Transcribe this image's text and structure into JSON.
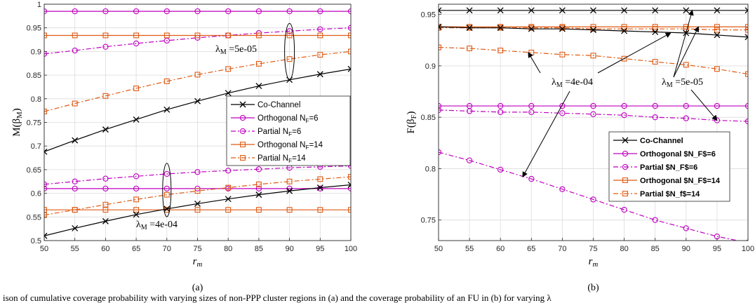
{
  "caption": "ison of cumulative coverage probability with varying sizes of non-PPP cluster regions in (a) and the coverage probability of an FU in (b) for varying λ",
  "chart_data": [
    {
      "type": "line",
      "panel_label": "(a)",
      "xlabel": "r_m",
      "ylabel": "M(β_M)",
      "xlim": [
        50,
        100
      ],
      "ylim": [
        0.5,
        1.0
      ],
      "xticks": [
        50,
        55,
        60,
        65,
        70,
        75,
        80,
        85,
        90,
        95,
        100
      ],
      "yticks": [
        0.5,
        0.55,
        0.6,
        0.65,
        0.7,
        0.75,
        0.8,
        0.85,
        0.9,
        0.95,
        1.0
      ],
      "ytick_labels": [
        "0.5",
        "0.55",
        "0.6",
        "0.65",
        "0.7",
        "0.75",
        "0.8",
        "0.85",
        "0.9",
        "0.95",
        "1"
      ],
      "grid": true,
      "legend_position": "center-right",
      "legend": [
        {
          "label": "Co-Channel",
          "color": "#000000",
          "dash": "",
          "marker": "x"
        },
        {
          "label": "Orthogonal N_F=6",
          "color": "#BF00BF",
          "dash": "",
          "marker": "o"
        },
        {
          "label": "Partial N_F=6",
          "color": "#BF00BF",
          "dash": "7 3 2 3",
          "marker": "o"
        },
        {
          "label": "Orthogonal N_F=14",
          "color": "#E05A12",
          "dash": "",
          "marker": "s"
        },
        {
          "label": "Partial N_F=14",
          "color": "#E05A12",
          "dash": "7 3 2 3",
          "marker": "s"
        }
      ],
      "x": [
        50,
        55,
        60,
        65,
        70,
        75,
        80,
        85,
        90,
        95,
        100
      ],
      "series": [
        {
          "name": "Orthogonal N_F=6",
          "group": "λ_M=5e-05",
          "color": "#BF00BF",
          "dash": "",
          "marker": "o",
          "values": [
            0.985,
            0.985,
            0.985,
            0.985,
            0.985,
            0.985,
            0.985,
            0.985,
            0.985,
            0.985,
            0.985
          ]
        },
        {
          "name": "Partial N_F=6",
          "group": "λ_M=5e-05",
          "color": "#BF00BF",
          "dash": "7 3 2 3",
          "marker": "o",
          "values": [
            0.895,
            0.902,
            0.91,
            0.917,
            0.923,
            0.929,
            0.934,
            0.939,
            0.943,
            0.947,
            0.95
          ]
        },
        {
          "name": "Orthogonal N_F=14",
          "group": "λ_M=5e-05",
          "color": "#E05A12",
          "dash": "",
          "marker": "s",
          "values": [
            0.934,
            0.934,
            0.934,
            0.934,
            0.934,
            0.934,
            0.934,
            0.934,
            0.934,
            0.934,
            0.934
          ]
        },
        {
          "name": "Partial N_F=14",
          "group": "λ_M=5e-05",
          "color": "#E05A12",
          "dash": "7 3 2 3",
          "marker": "s",
          "values": [
            0.773,
            0.79,
            0.806,
            0.822,
            0.837,
            0.851,
            0.863,
            0.874,
            0.884,
            0.893,
            0.9
          ]
        },
        {
          "name": "Co-Channel",
          "group": "λ_M=5e-05",
          "color": "#000000",
          "dash": "",
          "marker": "x",
          "values": [
            0.688,
            0.712,
            0.735,
            0.756,
            0.777,
            0.795,
            0.812,
            0.827,
            0.84,
            0.852,
            0.863
          ]
        },
        {
          "name": "Partial N_F=6",
          "group": "λ_M=4e-04",
          "color": "#BF00BF",
          "dash": "7 3 2 3",
          "marker": "o",
          "values": [
            0.619,
            0.625,
            0.631,
            0.636,
            0.641,
            0.645,
            0.648,
            0.651,
            0.654,
            0.656,
            0.658
          ]
        },
        {
          "name": "Orthogonal N_F=6",
          "group": "λ_M=4e-04",
          "color": "#BF00BF",
          "dash": "",
          "marker": "o",
          "values": [
            0.61,
            0.61,
            0.61,
            0.61,
            0.61,
            0.61,
            0.61,
            0.61,
            0.61,
            0.61,
            0.61
          ]
        },
        {
          "name": "Partial N_F=14",
          "group": "λ_M=4e-04",
          "color": "#E05A12",
          "dash": "7 3 2 3",
          "marker": "s",
          "values": [
            0.554,
            0.565,
            0.576,
            0.587,
            0.597,
            0.605,
            0.612,
            0.619,
            0.625,
            0.63,
            0.635
          ]
        },
        {
          "name": "Orthogonal N_F=14",
          "group": "λ_M=4e-04",
          "color": "#E05A12",
          "dash": "",
          "marker": "s",
          "values": [
            0.565,
            0.565,
            0.565,
            0.565,
            0.565,
            0.565,
            0.565,
            0.565,
            0.565,
            0.565,
            0.565
          ]
        },
        {
          "name": "Co-Channel",
          "group": "λ_M=4e-04",
          "color": "#000000",
          "dash": "",
          "marker": "x",
          "values": [
            0.51,
            0.526,
            0.541,
            0.555,
            0.567,
            0.578,
            0.588,
            0.597,
            0.605,
            0.612,
            0.618
          ]
        }
      ],
      "annotations": [
        {
          "text": "λ_M =5e-05",
          "x": 90,
          "y": 0.9
        },
        {
          "text": "λ_M =4e-04",
          "x": 70,
          "y": 0.555
        }
      ]
    },
    {
      "type": "line",
      "panel_label": "(b)",
      "xlabel": "r_m",
      "ylabel": "F(β_F)",
      "xlim": [
        50,
        100
      ],
      "ylim": [
        0.73,
        0.96
      ],
      "xticks": [
        50,
        55,
        60,
        65,
        70,
        75,
        80,
        85,
        90,
        95,
        100
      ],
      "yticks": [
        0.75,
        0.8,
        0.85,
        0.9,
        0.95
      ],
      "ytick_labels": [
        "0.75",
        "0.8",
        "0.85",
        "0.9",
        "0.95"
      ],
      "grid": true,
      "legend_position": "bottom-right",
      "legend": [
        {
          "label": "Co-Channel",
          "color": "#000000",
          "dash": "",
          "marker": "x"
        },
        {
          "label": "Orthogonal $N_F$=6",
          "color": "#BF00BF",
          "dash": "",
          "marker": "o"
        },
        {
          "label": "Partial $N_F$=6",
          "color": "#BF00BF",
          "dash": "7 3 2 3",
          "marker": "o"
        },
        {
          "label": "Orthogonal $N_F$=14",
          "color": "#E05A12",
          "dash": "",
          "marker": "s"
        },
        {
          "label": "Partial $N_f$=14",
          "color": "#E05A12",
          "dash": "7 3 2 3",
          "marker": "s"
        }
      ],
      "x": [
        50,
        55,
        60,
        65,
        70,
        75,
        80,
        85,
        90,
        95,
        100
      ],
      "series": [
        {
          "name": "Co-Channel",
          "group": "λ_M=5e-05",
          "color": "#000000",
          "dash": "",
          "marker": "x",
          "values": [
            0.954,
            0.954,
            0.954,
            0.954,
            0.954,
            0.954,
            0.954,
            0.954,
            0.954,
            0.954,
            0.954
          ]
        },
        {
          "name": "Orthogonal N_F=14",
          "group": "λ_M=5e-05",
          "color": "#E05A12",
          "dash": "",
          "marker": "s",
          "values": [
            0.938,
            0.938,
            0.938,
            0.938,
            0.938,
            0.938,
            0.938,
            0.938,
            0.938,
            0.938,
            0.938
          ]
        },
        {
          "name": "Partial N_F=14",
          "group": "λ_M=5e-05",
          "color": "#E05A12",
          "dash": "7 3 2 3",
          "marker": "s",
          "values": [
            0.937,
            0.937,
            0.937,
            0.937,
            0.937,
            0.936,
            0.936,
            0.936,
            0.936,
            0.935,
            0.935
          ]
        },
        {
          "name": "Co-Channel",
          "group": "λ_M=4e-04",
          "color": "#000000",
          "dash": "",
          "marker": "x",
          "values": [
            0.938,
            0.937,
            0.937,
            0.936,
            0.936,
            0.935,
            0.934,
            0.933,
            0.932,
            0.93,
            0.928
          ]
        },
        {
          "name": "Partial N_F=14",
          "group": "λ_M=4e-04",
          "color": "#E05A12",
          "dash": "7 3 2 3",
          "marker": "s",
          "values": [
            0.918,
            0.917,
            0.915,
            0.913,
            0.911,
            0.91,
            0.907,
            0.904,
            0.901,
            0.897,
            0.892
          ]
        },
        {
          "name": "Orthogonal N_F=6",
          "group": "λ_M=5e-05",
          "color": "#BF00BF",
          "dash": "",
          "marker": "o",
          "values": [
            0.861,
            0.861,
            0.861,
            0.861,
            0.861,
            0.861,
            0.861,
            0.861,
            0.861,
            0.861,
            0.861
          ]
        },
        {
          "name": "Partial N_F=6",
          "group": "λ_M=5e-05",
          "color": "#BF00BF",
          "dash": "7 3 2 3",
          "marker": "o",
          "values": [
            0.857,
            0.856,
            0.855,
            0.855,
            0.854,
            0.853,
            0.852,
            0.85,
            0.849,
            0.847,
            0.846
          ]
        },
        {
          "name": "Partial N_F=6",
          "group": "λ_M=4e-04",
          "color": "#BF00BF",
          "dash": "7 3 2 3",
          "marker": "o",
          "values": [
            0.816,
            0.808,
            0.799,
            0.79,
            0.78,
            0.77,
            0.76,
            0.75,
            0.742,
            0.734,
            0.728
          ]
        }
      ],
      "annotations": [
        {
          "text": "λ_M =4e-04",
          "x": 68,
          "y": 0.887
        },
        {
          "text": "λ_M =5e-05",
          "x": 92,
          "y": 0.887
        }
      ]
    }
  ]
}
